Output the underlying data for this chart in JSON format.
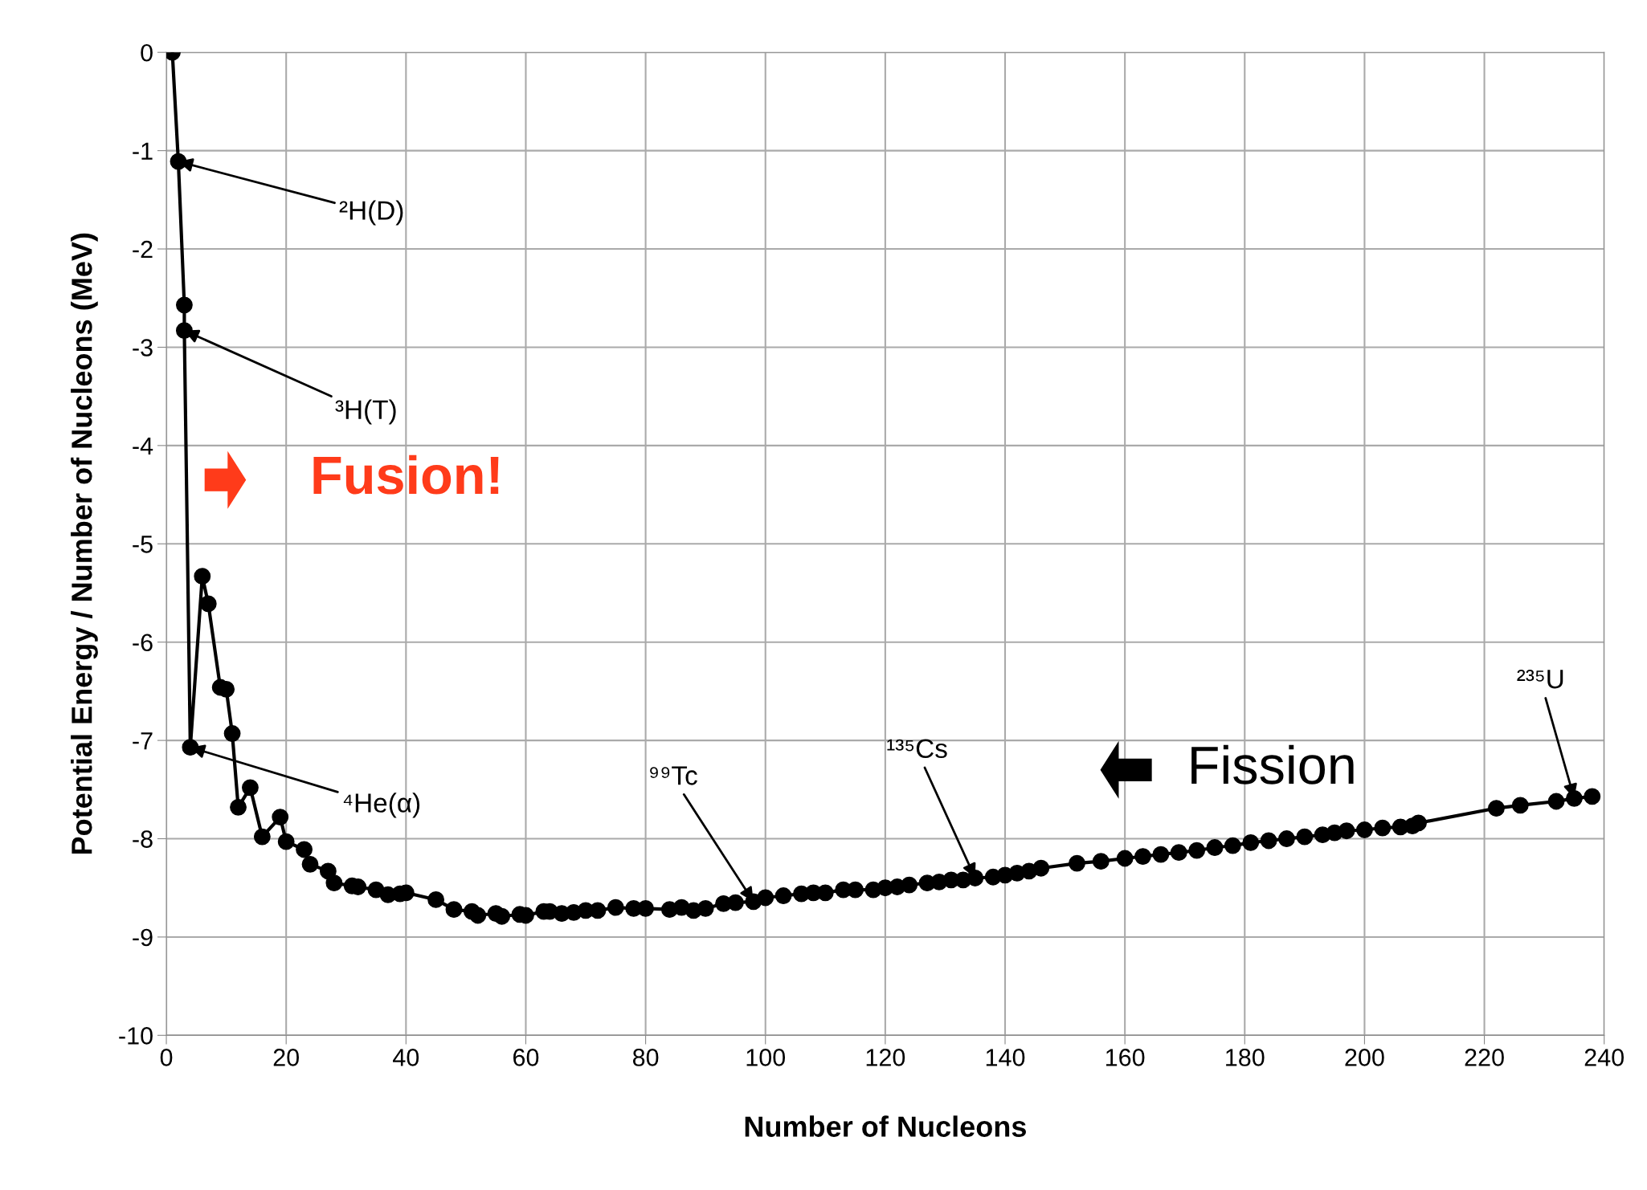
{
  "chart_data": {
    "type": "line",
    "xlabel": "Number of Nucleons",
    "ylabel": "Potential Energy / Number of Nucleons (MeV)",
    "x": [
      1,
      2,
      3,
      3,
      4,
      6,
      7,
      9,
      10,
      11,
      12,
      14,
      16,
      19,
      20,
      23,
      24,
      27,
      28,
      31,
      32,
      35,
      37,
      39,
      40,
      45,
      48,
      51,
      52,
      55,
      56,
      59,
      60,
      63,
      64,
      66,
      68,
      70,
      72,
      75,
      78,
      80,
      84,
      86,
      88,
      90,
      93,
      95,
      98,
      100,
      103,
      106,
      108,
      110,
      113,
      115,
      118,
      120,
      122,
      124,
      127,
      129,
      131,
      133,
      135,
      138,
      140,
      142,
      144,
      146,
      152,
      156,
      160,
      163,
      166,
      169,
      172,
      175,
      178,
      181,
      184,
      187,
      190,
      193,
      195,
      197,
      200,
      203,
      206,
      208,
      209,
      222,
      226,
      232,
      235,
      238
    ],
    "series": [
      {
        "color": "#000000",
        "values": [
          0,
          -1.11,
          -2.57,
          -2.83,
          -7.07,
          -5.33,
          -5.61,
          -6.46,
          -6.48,
          -6.93,
          -7.68,
          -7.48,
          -7.98,
          -7.78,
          -8.03,
          -8.11,
          -8.26,
          -8.33,
          -8.45,
          -8.48,
          -8.49,
          -8.52,
          -8.57,
          -8.56,
          -8.55,
          -8.62,
          -8.72,
          -8.74,
          -8.78,
          -8.76,
          -8.79,
          -8.77,
          -8.78,
          -8.74,
          -8.74,
          -8.76,
          -8.75,
          -8.73,
          -8.73,
          -8.7,
          -8.71,
          -8.71,
          -8.72,
          -8.7,
          -8.73,
          -8.71,
          -8.66,
          -8.65,
          -8.64,
          -8.6,
          -8.58,
          -8.56,
          -8.55,
          -8.55,
          -8.52,
          -8.52,
          -8.52,
          -8.5,
          -8.49,
          -8.47,
          -8.45,
          -8.44,
          -8.42,
          -8.42,
          -8.4,
          -8.39,
          -8.37,
          -8.35,
          -8.33,
          -8.3,
          -8.25,
          -8.23,
          -8.2,
          -8.18,
          -8.16,
          -8.14,
          -8.12,
          -8.09,
          -8.07,
          -8.04,
          -8.02,
          -8.0,
          -7.98,
          -7.96,
          -7.94,
          -7.92,
          -7.91,
          -7.89,
          -7.88,
          -7.87,
          -7.84,
          -7.69,
          -7.66,
          -7.62,
          -7.59,
          -7.57
        ]
      }
    ],
    "xlim": [
      0,
      240
    ],
    "xticks": [
      0,
      20,
      40,
      60,
      80,
      100,
      120,
      140,
      160,
      180,
      200,
      220,
      240
    ],
    "ylim": [
      -10,
      0
    ],
    "yticks": [
      -10,
      -9,
      -8,
      -7,
      -6,
      -5,
      -4,
      -3,
      -2,
      -1,
      0
    ],
    "grid": true,
    "marker": "circle",
    "line_style": "solid",
    "annotations": [
      {
        "text": "²H(D)",
        "x": 2,
        "y": -1.11
      },
      {
        "text": "³H(T)",
        "x": 3,
        "y": -2.83
      },
      {
        "text": "⁴He(α)",
        "x": 4,
        "y": -7.07
      },
      {
        "text": "⁹⁹Tc",
        "x": 98,
        "y": -8.64
      },
      {
        "text": "¹³⁵Cs",
        "x": 135,
        "y": -8.4
      },
      {
        "text": "²³⁵U",
        "x": 235,
        "y": -7.59
      },
      "Fusion!",
      "Fission"
    ]
  }
}
